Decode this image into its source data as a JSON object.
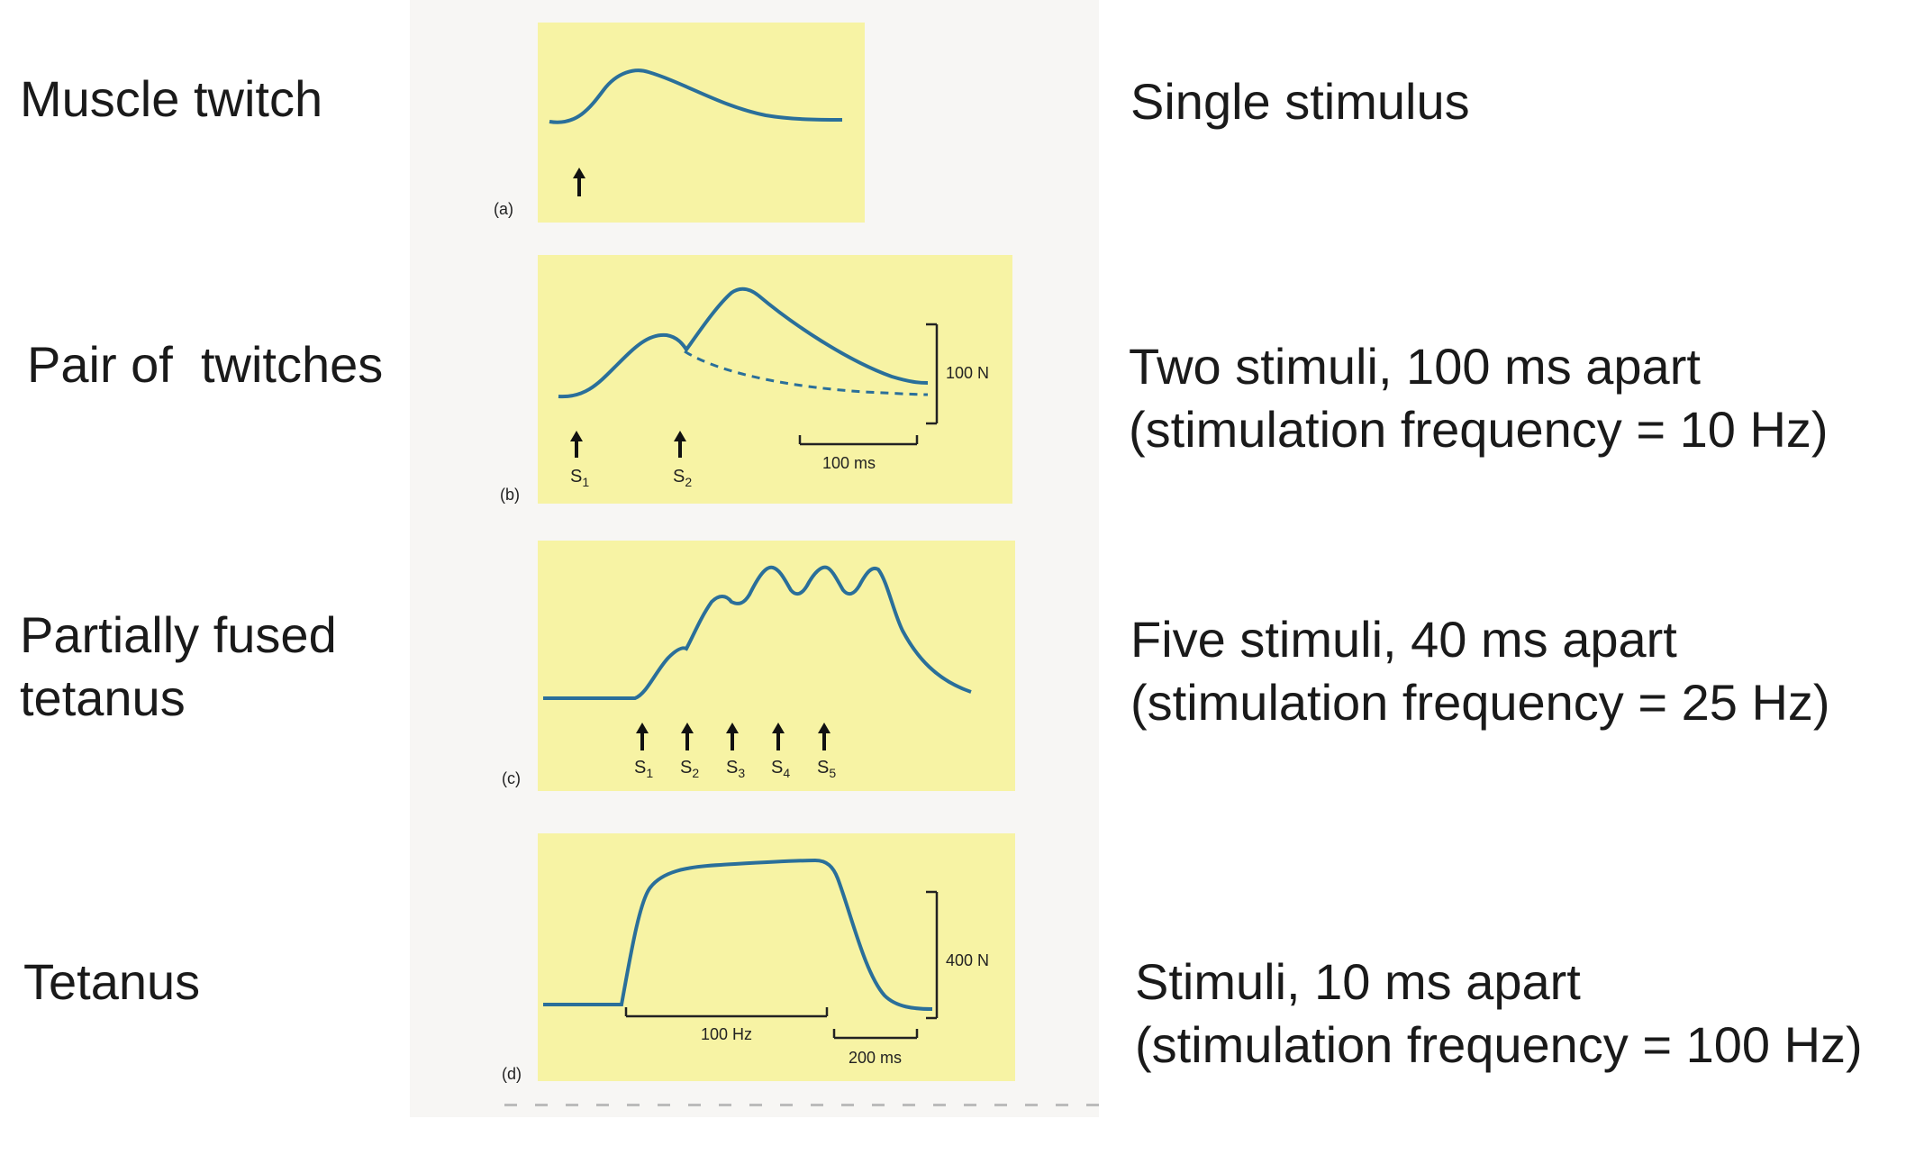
{
  "rows": [
    {
      "id": "a",
      "label_lines": [
        "Muscle twitch"
      ],
      "desc_lines": [
        "Single stimulus"
      ],
      "panel_tag": "(a)",
      "stimuli": [
        ""
      ]
    },
    {
      "id": "b",
      "label_lines": [
        "Pair of  twitches"
      ],
      "desc_lines": [
        "Two stimuli, 100 ms apart",
        "(stimulation frequency = 10 Hz)"
      ],
      "panel_tag": "(b)",
      "stimuli": [
        "S1",
        "S2"
      ],
      "force_scale": "100 N",
      "time_scale": "100 ms"
    },
    {
      "id": "c",
      "label_lines": [
        "Partially fused",
        "tetanus"
      ],
      "desc_lines": [
        "Five stimuli, 40 ms apart",
        "(stimulation frequency = 25 Hz)"
      ],
      "panel_tag": "(c)",
      "stimuli": [
        "S1",
        "S2",
        "S3",
        "S4",
        "S5"
      ]
    },
    {
      "id": "d",
      "label_lines": [
        "Tetanus"
      ],
      "desc_lines": [
        "Stimuli, 10 ms apart",
        "(stimulation frequency = 100 Hz)"
      ],
      "panel_tag": "(d)",
      "force_scale": "400 N",
      "freq_bar": "100 Hz",
      "time_scale": "200 ms"
    }
  ],
  "colors": {
    "panel": "#f7f3a4",
    "trace": "#2a6f9a",
    "ink": "#1a1a1a"
  }
}
